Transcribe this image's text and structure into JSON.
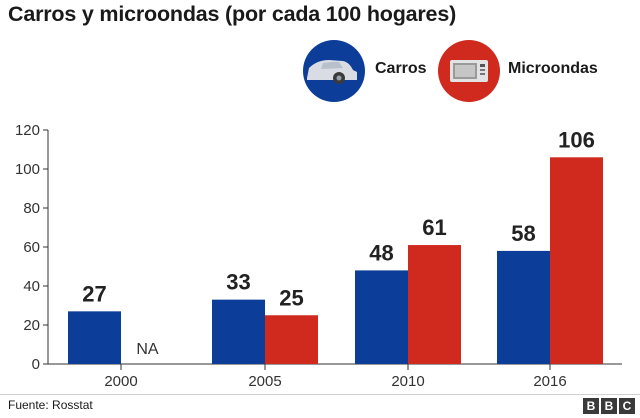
{
  "title": "Carros y microondas (por cada 100 hogares)",
  "legend": [
    {
      "label": "Carros",
      "color": "#0c3d99",
      "icon": "car-icon"
    },
    {
      "label": "Microondas",
      "color": "#d02a1f",
      "icon": "microwave-icon"
    }
  ],
  "chart_data": {
    "type": "bar",
    "title": "Carros y microondas (por cada 100 hogares)",
    "categories": [
      "2000",
      "2005",
      "2010",
      "2016"
    ],
    "series": [
      {
        "name": "Carros",
        "color": "#0c3d99",
        "values": [
          27,
          33,
          48,
          58
        ],
        "labels": [
          "27",
          "33",
          "48",
          "58"
        ]
      },
      {
        "name": "Microondas",
        "color": "#d02a1f",
        "values": [
          null,
          25,
          61,
          106
        ],
        "labels": [
          "NA",
          "25",
          "61",
          "106"
        ]
      }
    ],
    "ylim": [
      0,
      120
    ],
    "yticks": [
      "0",
      "20",
      "40",
      "60",
      "80",
      "100",
      "120"
    ],
    "xlabel": "",
    "ylabel": "",
    "grid": false
  },
  "footer": {
    "source": "Fuente: Rosstat",
    "logo": [
      "B",
      "B",
      "C"
    ]
  }
}
